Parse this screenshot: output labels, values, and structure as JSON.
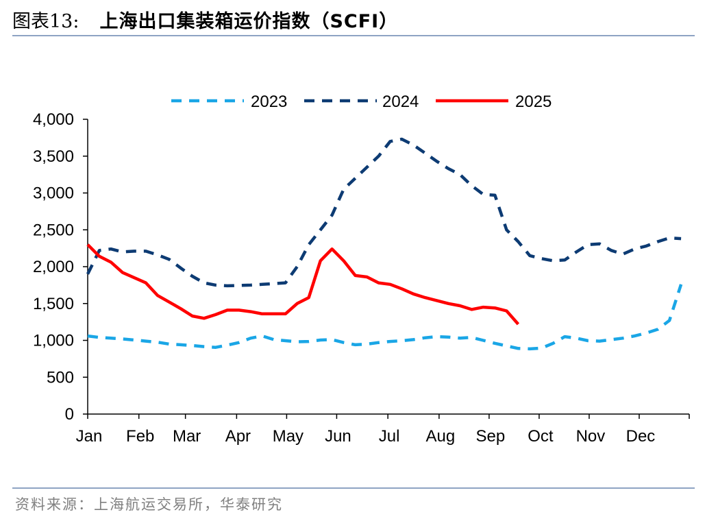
{
  "header": {
    "figure_label": "图表13:",
    "title": "上海出口集装箱运价指数（SCFI）"
  },
  "footer": {
    "source": "资料来源：上海航运交易所，华泰研究"
  },
  "colors": {
    "s2023": "#1aa6e6",
    "s2024": "#0d3b73",
    "s2025": "#ff0000",
    "rule": "#8ea3c3",
    "source_text": "#808080"
  },
  "chart_data": {
    "type": "line",
    "title": "上海出口集装箱运价指数（SCFI）",
    "xlabel": "",
    "ylabel": "",
    "ylim": [
      0,
      4000
    ],
    "yticks": [
      0,
      500,
      1000,
      1500,
      2000,
      2500,
      3000,
      3500,
      4000
    ],
    "ytick_labels": [
      "0",
      "500",
      "1,000",
      "1,500",
      "2,000",
      "2,500",
      "3,000",
      "3,500",
      "4,000"
    ],
    "categories": [
      "Jan",
      "Feb",
      "Mar",
      "Apr",
      "May",
      "Jun",
      "Jul",
      "Aug",
      "Sep",
      "Oct",
      "Nov",
      "Dec"
    ],
    "x_unit": "week of year (1-52)",
    "xlim": [
      1,
      52.7
    ],
    "month_tick_weeks": [
      1,
      5.4,
      9.4,
      13.8,
      18.1,
      22.4,
      26.8,
      31.2,
      35.5,
      39.8,
      44.1,
      48.4
    ],
    "legend_position": "top-center",
    "grid": false,
    "series": [
      {
        "name": "2023",
        "style": "dashed",
        "x": [
          1,
          2,
          3,
          4,
          5,
          6,
          7,
          8,
          9,
          10,
          11,
          12,
          13,
          14,
          15,
          16,
          17,
          18,
          19,
          20,
          21,
          22,
          23,
          24,
          25,
          26,
          27,
          28,
          29,
          30,
          31,
          32,
          33,
          34,
          35,
          36,
          37,
          38,
          39,
          40,
          41,
          42,
          43,
          44,
          45,
          46,
          47,
          48,
          49,
          50,
          51,
          52
        ],
        "values": [
          1060,
          1040,
          1030,
          1020,
          1005,
          990,
          975,
          950,
          940,
          930,
          915,
          905,
          935,
          970,
          1030,
          1060,
          1010,
          995,
          980,
          985,
          1005,
          1010,
          970,
          940,
          950,
          970,
          985,
          995,
          1010,
          1035,
          1050,
          1045,
          1030,
          1040,
          1000,
          960,
          925,
          890,
          885,
          895,
          960,
          1050,
          1030,
          995,
          990,
          1010,
          1030,
          1060,
          1100,
          1150,
          1270,
          1760
        ]
      },
      {
        "name": "2024",
        "style": "dashed",
        "x": [
          1,
          2,
          3,
          4,
          5,
          6,
          7,
          8,
          9,
          10,
          11,
          12,
          13,
          14,
          15,
          16,
          17,
          18,
          19,
          20,
          21,
          22,
          23,
          24,
          25,
          26,
          27,
          28,
          29,
          30,
          31,
          32,
          33,
          34,
          35,
          36,
          37,
          38,
          39,
          40,
          41,
          42,
          43,
          44,
          45,
          46,
          47,
          48,
          49,
          50,
          51,
          52
        ],
        "values": [
          1900,
          2220,
          2240,
          2200,
          2210,
          2210,
          2160,
          2100,
          1980,
          1870,
          1780,
          1750,
          1740,
          1745,
          1750,
          1760,
          1770,
          1780,
          2000,
          2300,
          2500,
          2700,
          3050,
          3200,
          3350,
          3500,
          3700,
          3730,
          3650,
          3540,
          3430,
          3330,
          3250,
          3100,
          2980,
          2970,
          2500,
          2340,
          2150,
          2110,
          2080,
          2090,
          2200,
          2300,
          2310,
          2220,
          2170,
          2240,
          2280,
          2340,
          2390,
          2380
        ]
      },
      {
        "name": "2025",
        "style": "solid",
        "x": [
          1,
          2,
          3,
          4,
          5,
          6,
          7,
          8,
          9,
          10,
          11,
          12,
          13,
          14,
          15,
          16,
          17,
          18,
          19,
          20,
          21,
          22,
          23,
          24,
          25,
          26,
          27,
          28,
          29,
          30,
          31,
          32,
          33,
          34,
          35,
          36,
          37,
          38
        ],
        "values": [
          2300,
          2140,
          2060,
          1920,
          1850,
          1780,
          1610,
          1520,
          1430,
          1330,
          1300,
          1350,
          1410,
          1410,
          1390,
          1360,
          1360,
          1360,
          1500,
          1580,
          2080,
          2240,
          2080,
          1880,
          1860,
          1780,
          1760,
          1700,
          1630,
          1580,
          1540,
          1500,
          1470,
          1420,
          1450,
          1440,
          1400,
          1220
        ]
      }
    ]
  }
}
